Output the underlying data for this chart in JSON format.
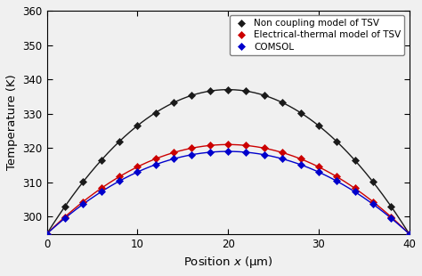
{
  "title": "",
  "xlabel": "Position $x$ (μm)",
  "ylabel": "Temperature (K)",
  "xlim": [
    0,
    40
  ],
  "ylim": [
    295,
    360
  ],
  "yticks": [
    300,
    310,
    320,
    330,
    340,
    350,
    360
  ],
  "xticks": [
    0,
    10,
    20,
    30,
    40
  ],
  "series": [
    {
      "label": "Non coupling model of TSV",
      "color": "#1a1a1a",
      "marker": "D",
      "markersize": 4.5,
      "peak_temp": 337,
      "boundary_temp": 295
    },
    {
      "label": "Electrical-thermal model of TSV",
      "color": "#cc0000",
      "marker": "D",
      "markersize": 4.5,
      "peak_temp": 321,
      "boundary_temp": 295
    },
    {
      "label": "COMSOL",
      "color": "#0000cc",
      "marker": "D",
      "markersize": 4.0,
      "peak_temp": 319,
      "boundary_temp": 295
    }
  ],
  "background_color": "#f0f0f0",
  "legend_loc": "upper right",
  "legend_fontsize": 7.5,
  "axis_fontsize": 9.5,
  "tick_fontsize": 8.5,
  "linewidth": 1.0,
  "n_points": 41,
  "marker_every": 2
}
